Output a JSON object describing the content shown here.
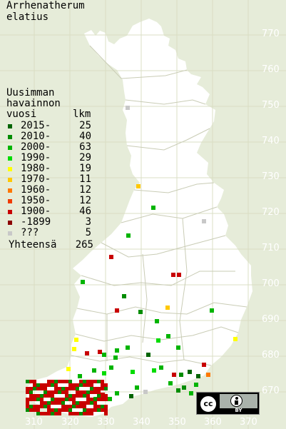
{
  "species_name_line1": "Arrhenatherum",
  "species_name_line2": "elatius",
  "legend": {
    "title_line1": "Uusimman",
    "title_line2": "havainnon",
    "col_period": "vuosi",
    "col_count": "lkm",
    "items": [
      {
        "period": "2015-",
        "count": "25",
        "color": "#006400"
      },
      {
        "period": "2010-",
        "count": "40",
        "color": "#008c00"
      },
      {
        "period": "2000-",
        "count": "63",
        "color": "#00b400"
      },
      {
        "period": "1990-",
        "count": "29",
        "color": "#00dc00"
      },
      {
        "period": "1980-",
        "count": "19",
        "color": "#ffff00"
      },
      {
        "period": "1970-",
        "count": "11",
        "color": "#ffc800"
      },
      {
        "period": "1960-",
        "count": "12",
        "color": "#ff7800"
      },
      {
        "period": "1950-",
        "count": "12",
        "color": "#f03c00"
      },
      {
        "period": "1900-",
        "count": "46",
        "color": "#c80000"
      },
      {
        "period": "-1899",
        "count": "3",
        "color": "#8c0000"
      },
      {
        "period": "???",
        "count": "5",
        "color": "#c8c8c8"
      }
    ],
    "total_label": "Yhteensä",
    "total_count": "265"
  },
  "grid": {
    "northing_labels": [
      "770",
      "760",
      "750",
      "740",
      "730",
      "720",
      "710",
      "700",
      "690",
      "680",
      "670"
    ],
    "easting_labels": [
      "310",
      "320",
      "330",
      "340",
      "350",
      "360",
      "370"
    ]
  },
  "license_badge": {
    "left": "cc",
    "right_text": "BY"
  },
  "colors": {
    "background": "#e6ecd9",
    "land": "#ffffff",
    "grid_line": "#d8dcc0",
    "border_line": "#c9ccb5"
  }
}
